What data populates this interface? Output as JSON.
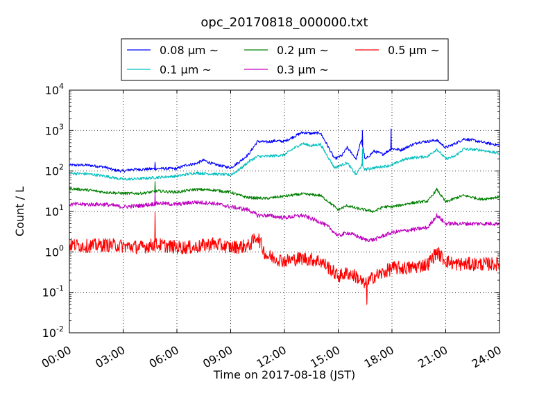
{
  "chart_data": {
    "type": "line",
    "title": "opc_20170818_000000.txt",
    "xlabel": "Time on 2017-08-18 (JST)",
    "ylabel": "Count / L",
    "x_range_hours": [
      0,
      24
    ],
    "x_ticks": [
      {
        "h": 0,
        "label": "00:00"
      },
      {
        "h": 3,
        "label": "03:00"
      },
      {
        "h": 6,
        "label": "06:00"
      },
      {
        "h": 9,
        "label": "09:00"
      },
      {
        "h": 12,
        "label": "12:00"
      },
      {
        "h": 15,
        "label": "15:00"
      },
      {
        "h": 18,
        "label": "18:00"
      },
      {
        "h": 21,
        "label": "21:00"
      },
      {
        "h": 24,
        "label": "24:00"
      }
    ],
    "y_scale": "log",
    "ylim": [
      0.01,
      10000
    ],
    "y_ticks": [
      {
        "v": 0.01,
        "base": "10",
        "exp": "-2"
      },
      {
        "v": 0.1,
        "base": "10",
        "exp": "-1"
      },
      {
        "v": 1,
        "base": "10",
        "exp": "0"
      },
      {
        "v": 10,
        "base": "10",
        "exp": "1"
      },
      {
        "v": 100,
        "base": "10",
        "exp": "2"
      },
      {
        "v": 1000,
        "base": "10",
        "exp": "3"
      },
      {
        "v": 10000,
        "base": "10",
        "exp": "4"
      }
    ],
    "grid": true,
    "legend_position": "top, outside plot",
    "series": [
      {
        "name": "0.08 μm ~",
        "color": "#0000ff",
        "points": [
          [
            0,
            140
          ],
          [
            1,
            140
          ],
          [
            2,
            125
          ],
          [
            2.5,
            105
          ],
          [
            3,
            100
          ],
          [
            3.5,
            110
          ],
          [
            4,
            110
          ],
          [
            5,
            115
          ],
          [
            6,
            115
          ],
          [
            6.5,
            140
          ],
          [
            7,
            150
          ],
          [
            7.5,
            185
          ],
          [
            8,
            150
          ],
          [
            9,
            120
          ],
          [
            9.5,
            170
          ],
          [
            10,
            260
          ],
          [
            10.5,
            540
          ],
          [
            11,
            520
          ],
          [
            11.5,
            560
          ],
          [
            12,
            540
          ],
          [
            12.5,
            700
          ],
          [
            13,
            900
          ],
          [
            13.5,
            850
          ],
          [
            14,
            880
          ],
          [
            14.3,
            520
          ],
          [
            14.8,
            200
          ],
          [
            15.2,
            240
          ],
          [
            15.5,
            380
          ],
          [
            16,
            200
          ],
          [
            16.3,
            600
          ],
          [
            16.5,
            190
          ],
          [
            17,
            310
          ],
          [
            17.5,
            260
          ],
          [
            18,
            360
          ],
          [
            18.5,
            330
          ],
          [
            19,
            420
          ],
          [
            19.5,
            520
          ],
          [
            20,
            540
          ],
          [
            20.5,
            580
          ],
          [
            21,
            380
          ],
          [
            21.5,
            470
          ],
          [
            22,
            620
          ],
          [
            22.5,
            580
          ],
          [
            23,
            520
          ],
          [
            24,
            430
          ]
        ]
      },
      {
        "name": "0.1 μm ~",
        "color": "#00bfbf",
        "points": [
          [
            0,
            88
          ],
          [
            1,
            85
          ],
          [
            2,
            75
          ],
          [
            3,
            62
          ],
          [
            4,
            65
          ],
          [
            5,
            70
          ],
          [
            6,
            75
          ],
          [
            7,
            90
          ],
          [
            8,
            85
          ],
          [
            9,
            80
          ],
          [
            9.5,
            110
          ],
          [
            10,
            170
          ],
          [
            10.5,
            230
          ],
          [
            11,
            230
          ],
          [
            12,
            250
          ],
          [
            12.5,
            360
          ],
          [
            13,
            480
          ],
          [
            13.5,
            420
          ],
          [
            14,
            460
          ],
          [
            14.3,
            280
          ],
          [
            14.8,
            120
          ],
          [
            15.5,
            160
          ],
          [
            16,
            80
          ],
          [
            16.3,
            140
          ],
          [
            16.5,
            110
          ],
          [
            17,
            120
          ],
          [
            18,
            140
          ],
          [
            18.5,
            180
          ],
          [
            19,
            210
          ],
          [
            20,
            230
          ],
          [
            20.5,
            350
          ],
          [
            21,
            200
          ],
          [
            21.5,
            230
          ],
          [
            22,
            350
          ],
          [
            23,
            330
          ],
          [
            24,
            270
          ]
        ]
      },
      {
        "name": "0.2 μm ~",
        "color": "#008000",
        "points": [
          [
            0,
            37
          ],
          [
            1,
            34
          ],
          [
            2,
            30
          ],
          [
            3,
            28
          ],
          [
            4,
            28
          ],
          [
            5,
            32
          ],
          [
            6,
            30
          ],
          [
            7,
            35
          ],
          [
            8,
            34
          ],
          [
            9,
            30
          ],
          [
            9.5,
            25
          ],
          [
            10,
            22
          ],
          [
            11,
            21
          ],
          [
            12,
            24
          ],
          [
            13,
            27
          ],
          [
            14,
            25
          ],
          [
            14.5,
            17
          ],
          [
            15,
            11
          ],
          [
            15.5,
            14
          ],
          [
            16,
            12
          ],
          [
            17,
            10
          ],
          [
            17.5,
            13
          ],
          [
            18,
            13
          ],
          [
            19,
            16
          ],
          [
            20,
            18
          ],
          [
            20.5,
            35
          ],
          [
            21,
            17
          ],
          [
            21.5,
            21
          ],
          [
            22,
            25
          ],
          [
            23,
            20
          ],
          [
            24,
            23
          ]
        ]
      },
      {
        "name": "0.3 μm ~",
        "color": "#bf00bf",
        "points": [
          [
            0,
            15
          ],
          [
            1,
            15
          ],
          [
            2,
            15
          ],
          [
            3,
            13
          ],
          [
            4,
            14
          ],
          [
            5,
            16
          ],
          [
            6,
            15
          ],
          [
            7,
            17
          ],
          [
            8,
            16
          ],
          [
            9,
            13
          ],
          [
            9.5,
            12
          ],
          [
            10,
            11
          ],
          [
            10.5,
            8
          ],
          [
            11,
            8
          ],
          [
            12,
            7
          ],
          [
            13,
            8
          ],
          [
            14,
            5.5
          ],
          [
            14.5,
            4
          ],
          [
            15,
            2.5
          ],
          [
            15.5,
            3
          ],
          [
            16,
            2.5
          ],
          [
            16.5,
            2
          ],
          [
            17,
            2
          ],
          [
            17.5,
            2.5
          ],
          [
            18,
            3
          ],
          [
            19,
            3.5
          ],
          [
            20,
            4
          ],
          [
            20.5,
            8
          ],
          [
            21,
            5
          ],
          [
            22,
            5
          ],
          [
            23,
            5
          ],
          [
            24,
            5
          ]
        ]
      },
      {
        "name": "0.5 μm ~",
        "color": "#ff0000",
        "points": [
          [
            0,
            1.5
          ],
          [
            1,
            1.4
          ],
          [
            2,
            1.5
          ],
          [
            3,
            1.4
          ],
          [
            4,
            1.3
          ],
          [
            4.7,
            1.5
          ],
          [
            5,
            1.5
          ],
          [
            6,
            1.3
          ],
          [
            7,
            1.3
          ],
          [
            8,
            1.6
          ],
          [
            9,
            1.3
          ],
          [
            10,
            1.4
          ],
          [
            10.5,
            2.5
          ],
          [
            10.8,
            1.2
          ],
          [
            11,
            0.8
          ],
          [
            12,
            0.6
          ],
          [
            13,
            0.7
          ],
          [
            14,
            0.6
          ],
          [
            14.5,
            0.4
          ],
          [
            15,
            0.25
          ],
          [
            15.5,
            0.3
          ],
          [
            16,
            0.25
          ],
          [
            16.5,
            0.15
          ],
          [
            17,
            0.25
          ],
          [
            17.5,
            0.3
          ],
          [
            18,
            0.4
          ],
          [
            19,
            0.4
          ],
          [
            20,
            0.5
          ],
          [
            20.5,
            1.0
          ],
          [
            21,
            0.6
          ],
          [
            21.5,
            0.5
          ],
          [
            22,
            0.5
          ],
          [
            23,
            0.5
          ],
          [
            24,
            0.5
          ]
        ]
      }
    ],
    "annotations": [
      {
        "series": 0,
        "h": 4.78,
        "value": 165
      },
      {
        "series": 0,
        "h": 16.35,
        "value": 1000
      },
      {
        "series": 0,
        "h": 17.95,
        "value": 1100
      },
      {
        "series": 1,
        "h": 16.35,
        "value": 350
      },
      {
        "series": 2,
        "h": 4.78,
        "value": 55
      },
      {
        "series": 3,
        "h": 4.78,
        "value": 30
      },
      {
        "series": 4,
        "h": 4.78,
        "value": 9.5
      },
      {
        "series": 4,
        "h": 16.6,
        "value": 0.05
      }
    ]
  }
}
